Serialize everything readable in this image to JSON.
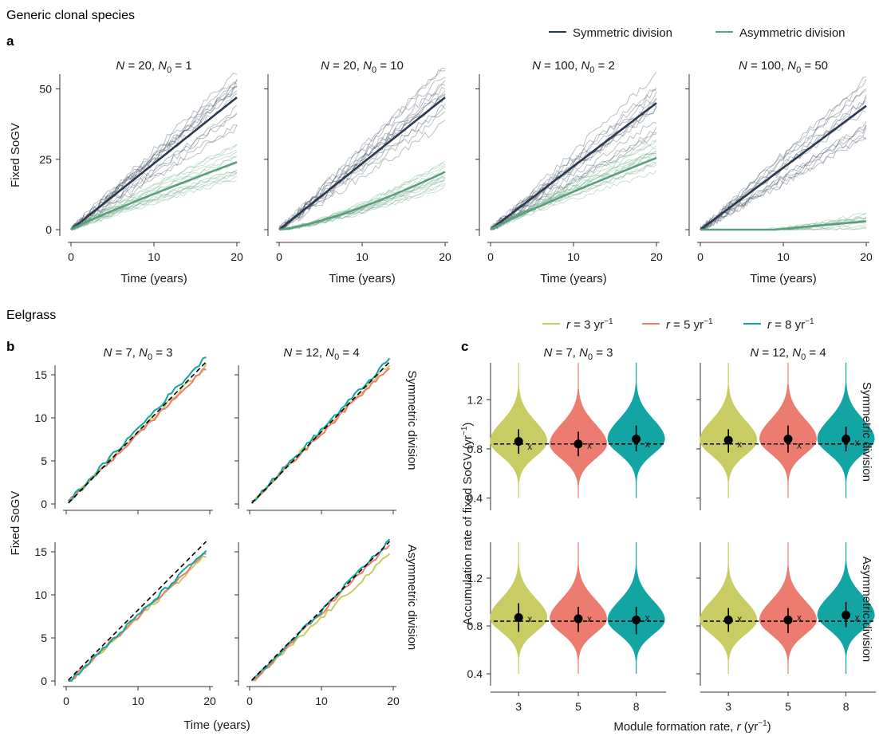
{
  "sections": {
    "generic": "Generic clonal species",
    "eelgrass": "Eelgrass",
    "panel_a": "a",
    "panel_b": "b",
    "panel_c": "c"
  },
  "legend_a": [
    {
      "label": "Symmetric division",
      "color": "#2b3a4e"
    },
    {
      "label": "Asymmetric division",
      "color": "#5a9e7c"
    }
  ],
  "legend_c": [
    {
      "pre": "r = 3 yr",
      "sup": "−1",
      "color": "#c9cc63"
    },
    {
      "pre": "r = 5 yr",
      "sup": "−1",
      "color": "#ec7b70"
    },
    {
      "pre": "r = 8 yr",
      "sup": "−1",
      "color": "#12a5a4"
    }
  ],
  "colors": {
    "sym": "#2b3a4e",
    "asym": "#5a9e7c",
    "r3": "#c9cc63",
    "r5": "#ec7b70",
    "r8": "#12a5a4"
  },
  "chart_data": [
    {
      "id": "a",
      "type": "line",
      "ylabel": "Fixed SoGV",
      "xlabel": "Time (years)",
      "xlim": [
        0,
        20
      ],
      "ylim": [
        -3,
        55
      ],
      "xticks": [
        0,
        10,
        20
      ],
      "yticks": [
        0,
        25,
        50
      ],
      "panels": [
        {
          "N": "20",
          "N0": "1",
          "series": [
            {
              "name": "Symmetric division",
              "x": [
                0,
                20
              ],
              "y": [
                0,
                47
              ]
            },
            {
              "name": "Asymmetric division",
              "x": [
                0,
                20
              ],
              "y": [
                0,
                24
              ]
            }
          ]
        },
        {
          "N": "20",
          "N0": "10",
          "series": [
            {
              "name": "Symmetric division",
              "x": [
                0,
                20
              ],
              "y": [
                0,
                47
              ]
            },
            {
              "name": "Asymmetric division",
              "x": [
                0,
                20
              ],
              "y": [
                0,
                20.5
              ]
            }
          ]
        },
        {
          "N": "100",
          "N0": "2",
          "series": [
            {
              "name": "Symmetric division",
              "x": [
                0,
                20
              ],
              "y": [
                0,
                45
              ]
            },
            {
              "name": "Asymmetric division",
              "x": [
                0,
                20
              ],
              "y": [
                0,
                25.5
              ]
            }
          ]
        },
        {
          "N": "100",
          "N0": "50",
          "series": [
            {
              "name": "Symmetric division",
              "x": [
                0,
                20
              ],
              "y": [
                0,
                44
              ]
            },
            {
              "name": "Asymmetric division",
              "x": [
                0,
                20
              ],
              "y": [
                0,
                3
              ]
            }
          ]
        }
      ]
    },
    {
      "id": "b",
      "type": "line",
      "ylabel": "Fixed SoGV",
      "xlabel": "Time (years)",
      "xlim": [
        0,
        20
      ],
      "ylim": [
        -0.8,
        18
      ],
      "xticks": [
        0,
        10,
        20
      ],
      "yticks": [
        0,
        5,
        10,
        15
      ],
      "row_labels": [
        "Symmetric division",
        "Asymmetric division"
      ],
      "panels": [
        {
          "N": "7",
          "N0": "3",
          "row": 0,
          "end": {
            "r3": 16.1,
            "r5": 15.8,
            "r8": 17.1
          },
          "ref_end": 16.5
        },
        {
          "N": "12",
          "N0": "4",
          "row": 0,
          "end": {
            "r3": 16.3,
            "r5": 16.0,
            "r8": 16.8
          },
          "ref_end": 16.5
        },
        {
          "N": "7",
          "N0": "3",
          "row": 1,
          "end": {
            "r3": 15.0,
            "r5": 15.4,
            "r8": 15.6
          },
          "ref_end": 16.2
        },
        {
          "N": "12",
          "N0": "4",
          "row": 1,
          "end": {
            "r3": 15.1,
            "r5": 16.3,
            "r8": 16.7
          },
          "ref_end": 16.2
        }
      ]
    },
    {
      "id": "c",
      "type": "violin",
      "ylabel": "Accumulation rate of fixed SoGV (yr",
      "ylabel_sup": "−1",
      "ylabel_close": ")",
      "xlabel": "Module formation rate, r (yr",
      "xlabel_sup": "−1",
      "xlabel_close": ")",
      "categories": [
        "3",
        "5",
        "8"
      ],
      "ylim": [
        0.3,
        1.5
      ],
      "yticks": [
        "0.4",
        "0.8",
        "1.2"
      ],
      "ytick_values": [
        0.4,
        0.8,
        1.2
      ],
      "reference": 0.84,
      "row_labels": [
        "Symmetric division",
        "Asymmetric division"
      ],
      "panels": [
        {
          "N": "7",
          "N0": "3",
          "row": 0,
          "mean": [
            0.86,
            0.84,
            0.88
          ],
          "lo": [
            0.76,
            0.74,
            0.78
          ],
          "hi": [
            0.96,
            0.94,
            0.99
          ],
          "cross": [
            0.82,
            0.83,
            0.84
          ]
        },
        {
          "N": "12",
          "N0": "4",
          "row": 0,
          "mean": [
            0.87,
            0.88,
            0.88
          ],
          "lo": [
            0.77,
            0.77,
            0.78
          ],
          "hi": [
            0.96,
            0.99,
            0.98
          ],
          "cross": [
            0.84,
            0.83,
            0.85
          ]
        },
        {
          "N": "7",
          "N0": "3",
          "row": 1,
          "mean": [
            0.87,
            0.86,
            0.85
          ],
          "lo": [
            0.75,
            0.75,
            0.73
          ],
          "hi": [
            0.99,
            0.96,
            0.96
          ],
          "cross": [
            0.86,
            0.86,
            0.87
          ]
        },
        {
          "N": "12",
          "N0": "4",
          "row": 1,
          "mean": [
            0.85,
            0.85,
            0.89
          ],
          "lo": [
            0.75,
            0.74,
            0.79
          ],
          "hi": [
            0.95,
            0.95,
            1.0
          ],
          "cross": [
            0.86,
            0.87,
            0.87
          ]
        }
      ]
    }
  ]
}
